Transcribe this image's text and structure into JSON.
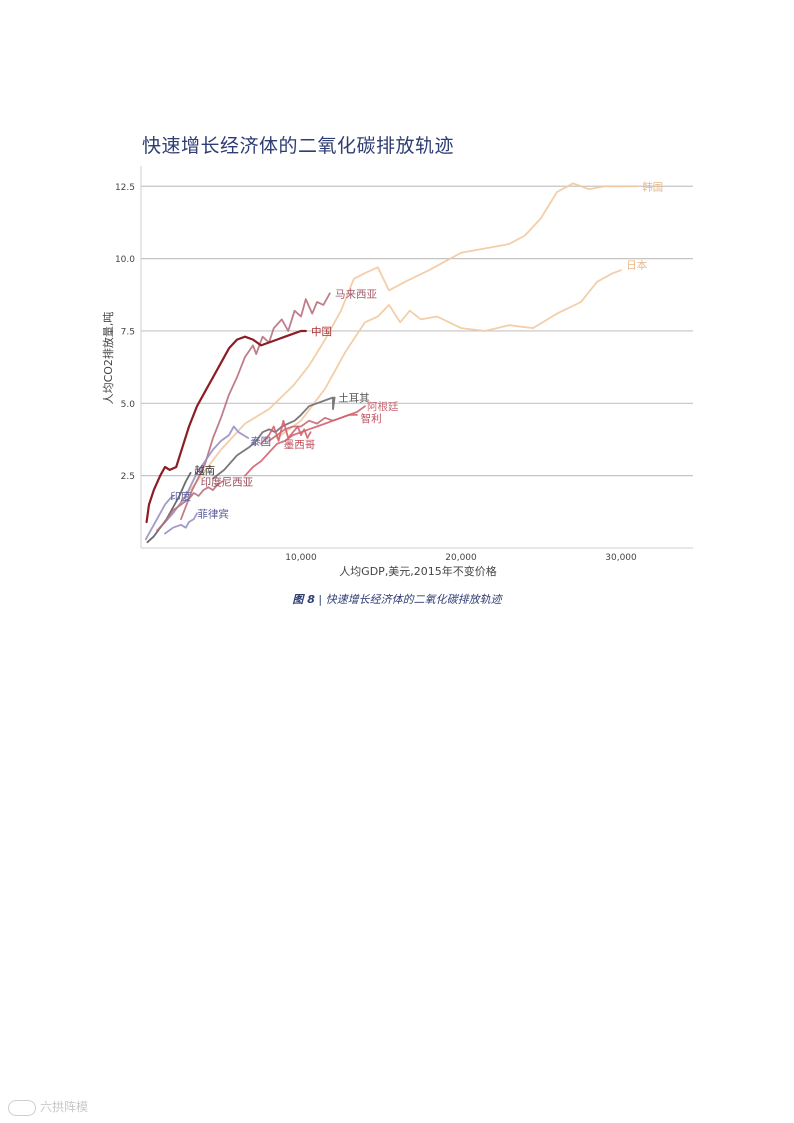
{
  "page": {
    "title": "快速增长经济体的二氧化碳排放轨迹",
    "caption_figure": "图 8",
    "caption_sep": " | ",
    "caption_text": "快速增长经济体的二氧化碳排放轨迹",
    "watermark": "六拱阵模"
  },
  "chart_data": {
    "type": "line",
    "xlabel": "人均GDP,美元,2015年不变价格",
    "ylabel": "人均CO2排放量,吨",
    "xlim": [
      0,
      34500
    ],
    "ylim": [
      0,
      13.2
    ],
    "x_ticks": [
      10000,
      20000,
      30000
    ],
    "x_tick_labels": [
      "10,000",
      "20,000",
      "30,000"
    ],
    "y_ticks": [
      2.5,
      5.0,
      7.5,
      10.0,
      12.5
    ],
    "y_tick_labels": [
      "2.5",
      "5.0",
      "7.5",
      "10.0",
      "12.5"
    ],
    "grid": "horizontal",
    "legend": "inline labels at series ends",
    "series": [
      {
        "name": "韩国",
        "color": "#f2c9a0",
        "label_color": "#e8b88a",
        "points": [
          [
            2500,
            1.6
          ],
          [
            3500,
            2.3
          ],
          [
            5000,
            3.4
          ],
          [
            6500,
            4.3
          ],
          [
            8000,
            4.8
          ],
          [
            9500,
            5.6
          ],
          [
            10500,
            6.3
          ],
          [
            11500,
            7.2
          ],
          [
            12500,
            8.2
          ],
          [
            13300,
            9.3
          ],
          [
            14000,
            9.5
          ],
          [
            14800,
            9.7
          ],
          [
            15500,
            8.9
          ],
          [
            16500,
            9.2
          ],
          [
            18000,
            9.6
          ],
          [
            20000,
            10.2
          ],
          [
            22000,
            10.4
          ],
          [
            23000,
            10.5
          ],
          [
            24000,
            10.8
          ],
          [
            25000,
            11.4
          ],
          [
            26000,
            12.3
          ],
          [
            27000,
            12.6
          ],
          [
            28000,
            12.4
          ],
          [
            29000,
            12.5
          ],
          [
            30000,
            12.5
          ],
          [
            31000,
            12.5
          ]
        ],
        "label_at": [
          31200,
          12.5
        ]
      },
      {
        "name": "日本",
        "color": "#f2c9a0",
        "label_color": "#e8b88a",
        "points": [
          [
            8500,
            3.8
          ],
          [
            10000,
            4.4
          ],
          [
            11500,
            5.5
          ],
          [
            12800,
            6.8
          ],
          [
            14000,
            7.8
          ],
          [
            14800,
            8.0
          ],
          [
            15500,
            8.4
          ],
          [
            16200,
            7.8
          ],
          [
            16800,
            8.2
          ],
          [
            17500,
            7.9
          ],
          [
            18500,
            8.0
          ],
          [
            20000,
            7.6
          ],
          [
            21500,
            7.5
          ],
          [
            23000,
            7.7
          ],
          [
            24500,
            7.6
          ],
          [
            26000,
            8.1
          ],
          [
            27500,
            8.5
          ],
          [
            28500,
            9.2
          ],
          [
            29500,
            9.5
          ],
          [
            30000,
            9.6
          ]
        ],
        "label_at": [
          30200,
          9.8
        ]
      },
      {
        "name": "马来西亚",
        "color": "#b9707d",
        "label_color": "#a35a6a",
        "points": [
          [
            2500,
            1.0
          ],
          [
            3200,
            2.0
          ],
          [
            4000,
            2.9
          ],
          [
            4500,
            3.8
          ],
          [
            5000,
            4.5
          ],
          [
            5500,
            5.3
          ],
          [
            6000,
            5.9
          ],
          [
            6500,
            6.6
          ],
          [
            7000,
            7.0
          ],
          [
            7200,
            6.7
          ],
          [
            7600,
            7.3
          ],
          [
            8000,
            7.1
          ],
          [
            8300,
            7.6
          ],
          [
            8800,
            7.9
          ],
          [
            9200,
            7.5
          ],
          [
            9600,
            8.2
          ],
          [
            10000,
            8.0
          ],
          [
            10300,
            8.6
          ],
          [
            10700,
            8.1
          ],
          [
            11000,
            8.5
          ],
          [
            11400,
            8.4
          ],
          [
            11800,
            8.8
          ]
        ],
        "label_at": [
          12000,
          8.8
        ]
      },
      {
        "name": "中国",
        "color": "#8b1e25",
        "label_color": "#a83030",
        "points": [
          [
            350,
            0.9
          ],
          [
            500,
            1.5
          ],
          [
            800,
            2.0
          ],
          [
            1200,
            2.5
          ],
          [
            1500,
            2.8
          ],
          [
            1800,
            2.7
          ],
          [
            2200,
            2.8
          ],
          [
            2600,
            3.5
          ],
          [
            3000,
            4.2
          ],
          [
            3500,
            4.9
          ],
          [
            4000,
            5.4
          ],
          [
            4500,
            5.9
          ],
          [
            5000,
            6.4
          ],
          [
            5500,
            6.9
          ],
          [
            6000,
            7.2
          ],
          [
            6500,
            7.3
          ],
          [
            7000,
            7.2
          ],
          [
            7500,
            7.0
          ],
          [
            8000,
            7.1
          ],
          [
            8500,
            7.2
          ],
          [
            9000,
            7.3
          ],
          [
            9500,
            7.4
          ],
          [
            10000,
            7.5
          ],
          [
            10300,
            7.5
          ]
        ],
        "label_at": [
          10500,
          7.5
        ]
      },
      {
        "name": "土耳其",
        "color": "#6a6a70",
        "label_color": "#555555",
        "points": [
          [
            4500,
            2.4
          ],
          [
            5200,
            2.7
          ],
          [
            6000,
            3.2
          ],
          [
            6800,
            3.5
          ],
          [
            7200,
            3.7
          ],
          [
            7600,
            4.0
          ],
          [
            8000,
            4.1
          ],
          [
            8400,
            4.0
          ],
          [
            8800,
            4.2
          ],
          [
            9200,
            4.3
          ],
          [
            9600,
            4.4
          ],
          [
            10000,
            4.6
          ],
          [
            10500,
            4.9
          ],
          [
            11000,
            5.0
          ],
          [
            11500,
            5.1
          ],
          [
            12000,
            5.2
          ],
          [
            12000,
            4.8
          ],
          [
            12100,
            5.2
          ]
        ],
        "label_at": [
          12200,
          5.2
        ]
      },
      {
        "name": "阿根廷",
        "color": "#c96a72",
        "label_color": "#c96a72",
        "points": [
          [
            8000,
            3.7
          ],
          [
            8500,
            3.9
          ],
          [
            9000,
            4.1
          ],
          [
            9500,
            4.2
          ],
          [
            10000,
            4.2
          ],
          [
            10500,
            4.4
          ],
          [
            11000,
            4.3
          ],
          [
            11500,
            4.5
          ],
          [
            12000,
            4.4
          ],
          [
            12500,
            4.5
          ],
          [
            13000,
            4.6
          ],
          [
            13500,
            4.7
          ],
          [
            14000,
            4.9
          ]
        ],
        "label_at": [
          14000,
          4.9
        ]
      },
      {
        "name": "智利",
        "color": "#d4626e",
        "label_color": "#c04f5c",
        "points": [
          [
            6500,
            2.5
          ],
          [
            7000,
            2.8
          ],
          [
            7500,
            3.0
          ],
          [
            8000,
            3.3
          ],
          [
            8500,
            3.6
          ],
          [
            9000,
            3.7
          ],
          [
            9500,
            3.9
          ],
          [
            10000,
            4.0
          ],
          [
            10500,
            4.1
          ],
          [
            11000,
            4.2
          ],
          [
            11500,
            4.3
          ],
          [
            12000,
            4.4
          ],
          [
            12500,
            4.5
          ],
          [
            13000,
            4.6
          ],
          [
            13500,
            4.6
          ]
        ],
        "label_at": [
          13600,
          4.5
        ]
      },
      {
        "name": "墨西哥",
        "color": "#d4626e",
        "label_color": "#c04f5c",
        "points": [
          [
            7500,
            3.6
          ],
          [
            8000,
            3.9
          ],
          [
            8300,
            4.2
          ],
          [
            8600,
            3.7
          ],
          [
            8900,
            4.4
          ],
          [
            9200,
            3.8
          ],
          [
            9500,
            4.0
          ],
          [
            9800,
            4.2
          ],
          [
            10000,
            3.9
          ],
          [
            10200,
            4.1
          ],
          [
            10400,
            3.8
          ],
          [
            10600,
            4.0
          ]
        ],
        "label_at": [
          8800,
          3.6
        ]
      },
      {
        "name": "泰国",
        "color": "#9a8fbf",
        "label_color": "#5a5a9a",
        "points": [
          [
            1200,
            0.7
          ],
          [
            2000,
            1.2
          ],
          [
            2800,
            1.8
          ],
          [
            3500,
            2.6
          ],
          [
            4000,
            3.0
          ],
          [
            4500,
            3.4
          ],
          [
            5000,
            3.7
          ],
          [
            5500,
            3.9
          ],
          [
            5800,
            4.2
          ],
          [
            6100,
            4.0
          ],
          [
            6400,
            3.9
          ],
          [
            6700,
            3.8
          ]
        ],
        "label_at": [
          6700,
          3.7
        ]
      },
      {
        "name": "越南",
        "color": "#5a5a62",
        "label_color": "#333333",
        "points": [
          [
            400,
            0.2
          ],
          [
            800,
            0.4
          ],
          [
            1200,
            0.7
          ],
          [
            1600,
            1.0
          ],
          [
            2000,
            1.4
          ],
          [
            2400,
            1.8
          ],
          [
            2800,
            2.3
          ],
          [
            3100,
            2.6
          ]
        ],
        "label_at": [
          3200,
          2.7
        ]
      },
      {
        "name": "印度尼西亚",
        "color": "#b9707d",
        "label_color": "#9a4a5a",
        "points": [
          [
            1000,
            0.6
          ],
          [
            1500,
            0.9
          ],
          [
            2000,
            1.3
          ],
          [
            2500,
            1.5
          ],
          [
            3000,
            1.7
          ],
          [
            3300,
            1.9
          ],
          [
            3600,
            1.8
          ],
          [
            3900,
            2.0
          ],
          [
            4200,
            2.1
          ],
          [
            4500,
            2.0
          ],
          [
            4800,
            2.2
          ],
          [
            5100,
            2.3
          ]
        ],
        "label_at": [
          3600,
          2.3
        ]
      },
      {
        "name": "印度",
        "color": "#9a8fbf",
        "label_color": "#5a5a9a",
        "points": [
          [
            300,
            0.3
          ],
          [
            600,
            0.6
          ],
          [
            900,
            0.9
          ],
          [
            1200,
            1.2
          ],
          [
            1500,
            1.5
          ],
          [
            1800,
            1.7
          ],
          [
            2000,
            1.8
          ]
        ],
        "label_at": [
          1700,
          1.8
        ]
      },
      {
        "name": "菲律宾",
        "color": "#9a8fbf",
        "label_color": "#5a5a9a",
        "points": [
          [
            1500,
            0.5
          ],
          [
            2000,
            0.7
          ],
          [
            2500,
            0.8
          ],
          [
            2800,
            0.7
          ],
          [
            3000,
            0.9
          ],
          [
            3300,
            1.0
          ],
          [
            3500,
            1.2
          ]
        ],
        "label_at": [
          3400,
          1.2
        ]
      }
    ]
  }
}
